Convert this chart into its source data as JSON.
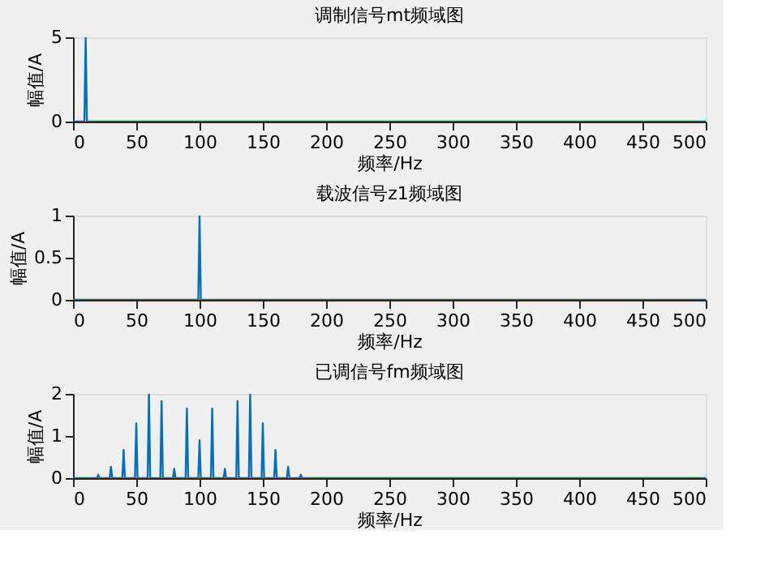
{
  "chart_data": [
    {
      "type": "line",
      "title": "调制信号mt频域图",
      "xlabel": "频率/Hz",
      "ylabel": "幅值/A",
      "x": [
        0,
        9,
        10,
        11,
        500
      ],
      "values": [
        0,
        0,
        5,
        0,
        0
      ],
      "color": "#0072bd",
      "xlim": [
        0,
        500
      ],
      "xticks": [
        0,
        50,
        100,
        150,
        200,
        250,
        300,
        350,
        400,
        450,
        500
      ],
      "ylim": [
        0,
        5
      ],
      "yticks": [
        0,
        5
      ],
      "grid": false
    },
    {
      "type": "line",
      "title": "载波信号z1频域图",
      "xlabel": "频率/Hz",
      "ylabel": "幅值/A",
      "x": [
        0,
        99,
        100,
        101,
        500
      ],
      "values": [
        0,
        0,
        1,
        0,
        0
      ],
      "color": "#0072bd",
      "xlim": [
        0,
        500
      ],
      "xticks": [
        0,
        50,
        100,
        150,
        200,
        250,
        300,
        350,
        400,
        450,
        500
      ],
      "ylim": [
        0,
        1
      ],
      "yticks": [
        0,
        0.5,
        1
      ],
      "grid": false
    },
    {
      "type": "line",
      "title": "已调信号fm频域图",
      "xlabel": "频率/Hz",
      "ylabel": "幅值/A",
      "x": [
        0,
        19,
        20,
        21,
        29,
        30,
        31,
        39,
        40,
        41,
        49,
        50,
        51,
        59,
        60,
        61,
        69,
        70,
        71,
        79,
        80,
        81,
        89,
        90,
        91,
        99,
        100,
        101,
        109,
        110,
        111,
        119,
        120,
        121,
        129,
        130,
        131,
        139,
        140,
        141,
        149,
        150,
        151,
        159,
        160,
        161,
        169,
        170,
        171,
        179,
        180,
        181,
        500
      ],
      "values": [
        0,
        0,
        0.08,
        0,
        0,
        0.27,
        0,
        0,
        0.67,
        0,
        0,
        1.3,
        0,
        0,
        2.0,
        0,
        0,
        1.83,
        0,
        0,
        0.22,
        0,
        0,
        1.65,
        0,
        0,
        0.9,
        0,
        0,
        1.65,
        0,
        0,
        0.22,
        0,
        0,
        1.83,
        0,
        0,
        2.0,
        0,
        0,
        1.3,
        0,
        0,
        0.67,
        0,
        0,
        0.27,
        0,
        0,
        0.08,
        0,
        0
      ],
      "color": "#0072bd",
      "xlim": [
        0,
        500
      ],
      "xticks": [
        0,
        50,
        100,
        150,
        200,
        250,
        300,
        350,
        400,
        450,
        500
      ],
      "ylim": [
        0,
        2
      ],
      "yticks": [
        0,
        1,
        2
      ],
      "grid": false
    }
  ]
}
